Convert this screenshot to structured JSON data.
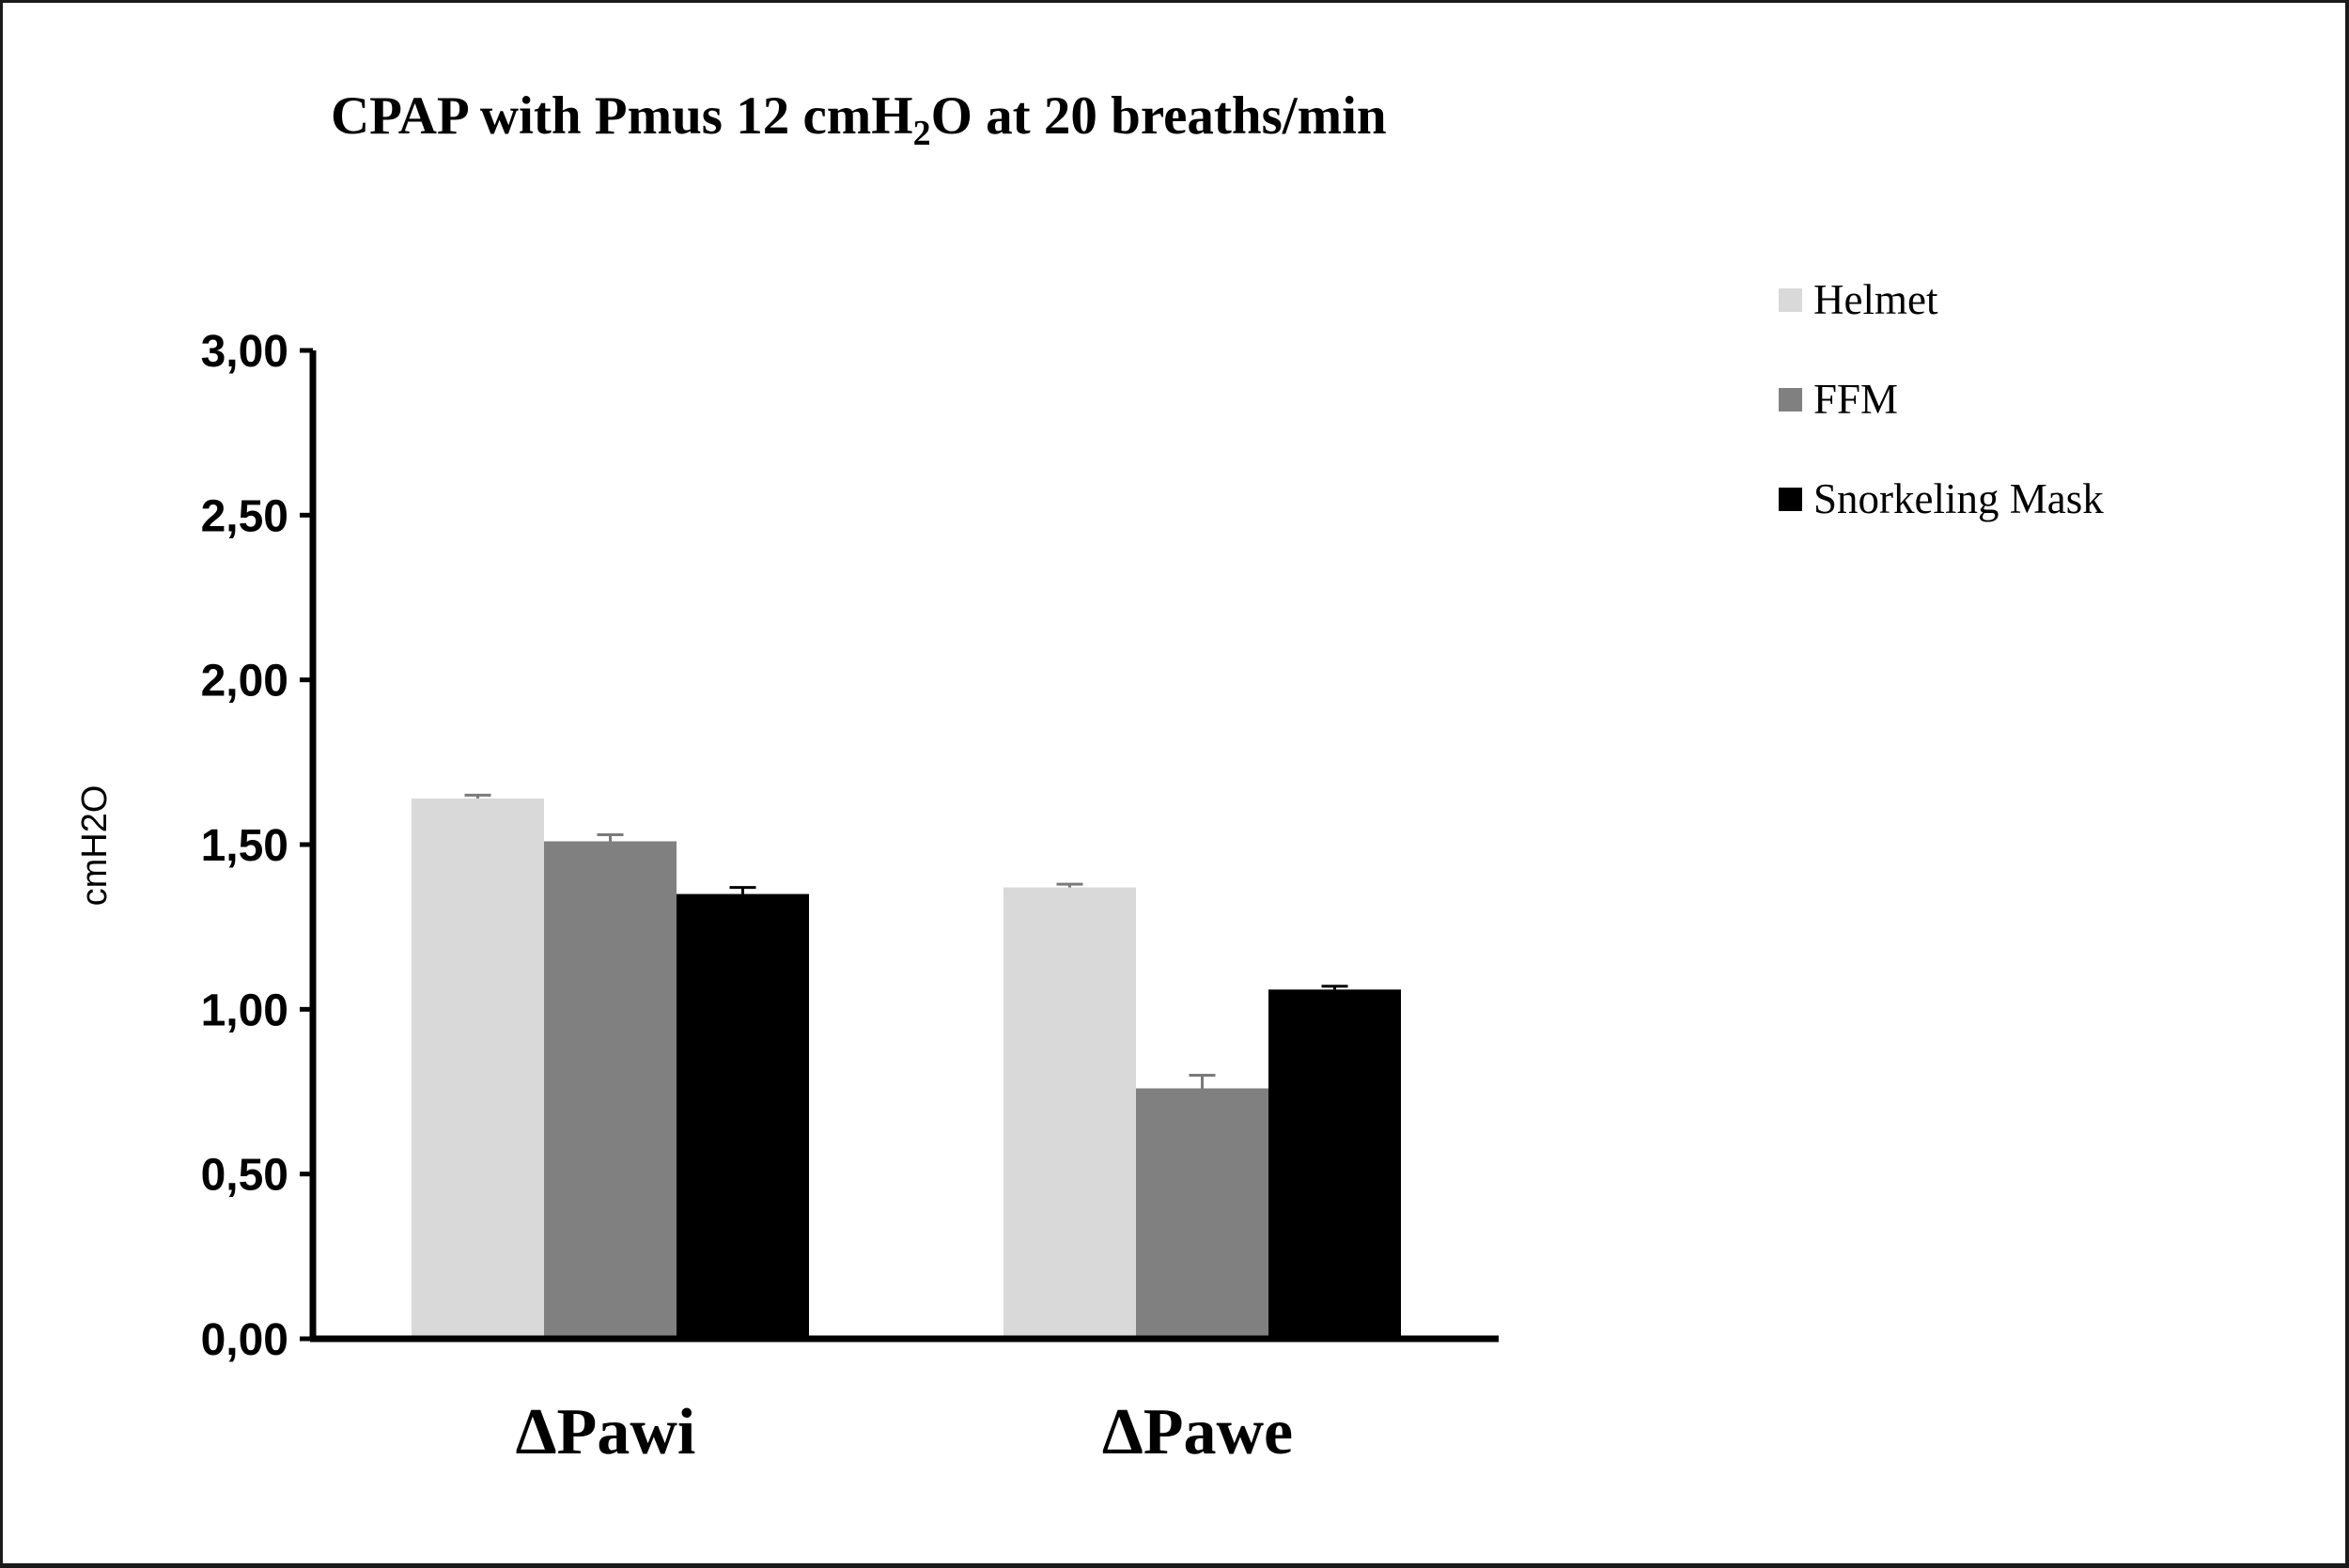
{
  "chart_data": {
    "type": "bar",
    "title_parts": {
      "before": "CPAP with Pmus 12 cmH",
      "subscript": "2",
      "after": "O at 20 breaths/min"
    },
    "ylabel": "cmH2O",
    "xlabel": "",
    "categories": [
      "ΔPawi",
      "ΔPawe"
    ],
    "ylim": [
      0,
      3
    ],
    "yticks": [
      0,
      0.5,
      1,
      1.5,
      2,
      2.5,
      3
    ],
    "ytick_labels": [
      "0,00",
      "0,50",
      "1,00",
      "1,50",
      "2,00",
      "2,50",
      "3,00"
    ],
    "series": [
      {
        "name": "Helmet",
        "color": "#d9d9d9",
        "values": [
          1.64,
          1.37
        ],
        "errors": [
          0.01,
          0.01
        ]
      },
      {
        "name": "FFM",
        "color": "#808080",
        "values": [
          1.51,
          0.76
        ],
        "errors": [
          0.02,
          0.04
        ]
      },
      {
        "name": "Snorkeling Mask",
        "color": "#000000",
        "values": [
          1.35,
          1.06
        ],
        "errors": [
          0.02,
          0.01
        ]
      }
    ],
    "legend_position": "top-right",
    "grid": false
  }
}
